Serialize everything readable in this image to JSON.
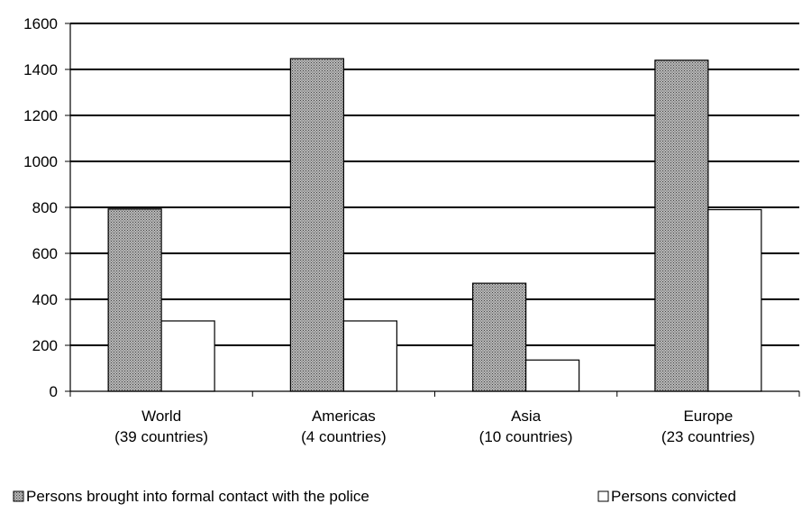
{
  "chart_data": {
    "type": "bar",
    "categories": [
      [
        "World",
        "(39 countries)"
      ],
      [
        "Americas",
        "(4 countries)"
      ],
      [
        "Asia",
        "(10 countries)"
      ],
      [
        "Europe",
        "(23 countries)"
      ]
    ],
    "series": [
      {
        "name": "Persons brought into formal contact with the police",
        "values": [
          793,
          1447,
          470,
          1440
        ],
        "pattern": "crosshatch"
      },
      {
        "name": "Persons convicted",
        "values": [
          306,
          306,
          136,
          790
        ],
        "pattern": "none"
      }
    ],
    "ylim": [
      0,
      1600
    ],
    "yticks": [
      0,
      200,
      400,
      600,
      800,
      1000,
      1200,
      1400,
      1600
    ],
    "grid": true,
    "legend_position": "bottom",
    "colors": {
      "bar_fill_light": "#ffffff",
      "pattern_dark": "#555555",
      "axis": "#000000"
    }
  }
}
